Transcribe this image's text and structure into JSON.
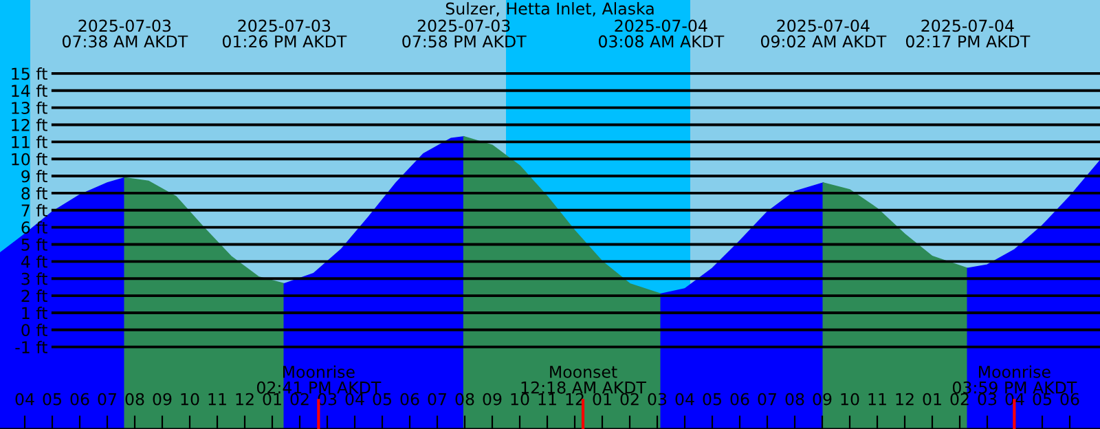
{
  "chart_data": {
    "type": "area",
    "title": "Sulzer, Hetta Inlet, Alaska",
    "series": [
      {
        "color": "#0000ff",
        "x": [
          "2025-07-03T03:06",
          "2025-07-03T04:00",
          "2025-07-03T05:00",
          "2025-07-03T06:00",
          "2025-07-03T07:00",
          "2025-07-03T07:38"
        ],
        "values": [
          4.5,
          5.6,
          6.9,
          7.9,
          8.6,
          8.9
        ]
      },
      {
        "color": "#2e8b57",
        "x": [
          "2025-07-03T07:38",
          "2025-07-03T08:30",
          "2025-07-03T09:30",
          "2025-07-03T10:30",
          "2025-07-03T11:30",
          "2025-07-03T12:30",
          "2025-07-03T13:26"
        ],
        "values": [
          8.9,
          8.7,
          7.8,
          6.0,
          4.3,
          3.1,
          2.7
        ]
      },
      {
        "color": "#0000ff",
        "x": [
          "2025-07-03T13:26",
          "2025-07-03T14:30",
          "2025-07-03T15:30",
          "2025-07-03T16:30",
          "2025-07-03T17:30",
          "2025-07-03T18:30",
          "2025-07-03T19:30",
          "2025-07-03T19:58"
        ],
        "values": [
          2.7,
          3.3,
          4.7,
          6.6,
          8.6,
          10.3,
          11.2,
          11.3
        ]
      },
      {
        "color": "#2e8b57",
        "x": [
          "2025-07-03T19:58",
          "2025-07-03T21:00",
          "2025-07-03T22:00",
          "2025-07-03T23:00",
          "2025-07-04T00:00",
          "2025-07-04T01:00",
          "2025-07-04T02:00",
          "2025-07-04T03:08"
        ],
        "values": [
          11.3,
          10.8,
          9.6,
          7.8,
          5.8,
          4.0,
          2.7,
          2.1
        ]
      },
      {
        "color": "#0000ff",
        "x": [
          "2025-07-04T03:08",
          "2025-07-04T04:00",
          "2025-07-04T05:00",
          "2025-07-04T06:00",
          "2025-07-04T07:00",
          "2025-07-04T08:00",
          "2025-07-04T09:02"
        ],
        "values": [
          2.1,
          2.4,
          3.6,
          5.2,
          6.9,
          8.1,
          8.6
        ]
      },
      {
        "color": "#2e8b57",
        "x": [
          "2025-07-04T09:02",
          "2025-07-04T10:00",
          "2025-07-04T11:00",
          "2025-07-04T12:00",
          "2025-07-04T13:00",
          "2025-07-04T14:17"
        ],
        "values": [
          8.6,
          8.2,
          7.1,
          5.6,
          4.3,
          3.6
        ]
      },
      {
        "color": "#0000ff",
        "x": [
          "2025-07-04T14:17",
          "2025-07-04T15:00",
          "2025-07-04T16:00",
          "2025-07-04T17:00",
          "2025-07-04T18:00",
          "2025-07-04T19:06"
        ],
        "values": [
          3.6,
          3.8,
          4.7,
          6.1,
          7.8,
          9.9
        ]
      }
    ],
    "xlim": [
      "2025-07-03T03:06",
      "2025-07-04T19:06"
    ],
    "xticks": [
      {
        "value": "2025-07-03T04:00",
        "label": "04"
      },
      {
        "value": "2025-07-03T05:00",
        "label": "05"
      },
      {
        "value": "2025-07-03T06:00",
        "label": "06"
      },
      {
        "value": "2025-07-03T07:00",
        "label": "07"
      },
      {
        "value": "2025-07-03T08:00",
        "label": "08"
      },
      {
        "value": "2025-07-03T09:00",
        "label": "09"
      },
      {
        "value": "2025-07-03T10:00",
        "label": "10"
      },
      {
        "value": "2025-07-03T11:00",
        "label": "11"
      },
      {
        "value": "2025-07-03T12:00",
        "label": "12"
      },
      {
        "value": "2025-07-03T13:00",
        "label": "01"
      },
      {
        "value": "2025-07-03T14:00",
        "label": "02"
      },
      {
        "value": "2025-07-03T15:00",
        "label": "03"
      },
      {
        "value": "2025-07-03T16:00",
        "label": "04"
      },
      {
        "value": "2025-07-03T17:00",
        "label": "05"
      },
      {
        "value": "2025-07-03T18:00",
        "label": "06"
      },
      {
        "value": "2025-07-03T19:00",
        "label": "07"
      },
      {
        "value": "2025-07-03T20:00",
        "label": "08"
      },
      {
        "value": "2025-07-03T21:00",
        "label": "09"
      },
      {
        "value": "2025-07-03T22:00",
        "label": "10"
      },
      {
        "value": "2025-07-03T23:00",
        "label": "11"
      },
      {
        "value": "2025-07-04T00:00",
        "label": "12"
      },
      {
        "value": "2025-07-04T01:00",
        "label": "01"
      },
      {
        "value": "2025-07-04T02:00",
        "label": "02"
      },
      {
        "value": "2025-07-04T03:00",
        "label": "03"
      },
      {
        "value": "2025-07-04T04:00",
        "label": "04"
      },
      {
        "value": "2025-07-04T05:00",
        "label": "05"
      },
      {
        "value": "2025-07-04T06:00",
        "label": "06"
      },
      {
        "value": "2025-07-04T07:00",
        "label": "07"
      },
      {
        "value": "2025-07-04T08:00",
        "label": "08"
      },
      {
        "value": "2025-07-04T09:00",
        "label": "09"
      },
      {
        "value": "2025-07-04T10:00",
        "label": "10"
      },
      {
        "value": "2025-07-04T11:00",
        "label": "11"
      },
      {
        "value": "2025-07-04T12:00",
        "label": "12"
      },
      {
        "value": "2025-07-04T13:00",
        "label": "01"
      },
      {
        "value": "2025-07-04T14:00",
        "label": "02"
      },
      {
        "value": "2025-07-04T15:00",
        "label": "03"
      },
      {
        "value": "2025-07-04T16:00",
        "label": "04"
      },
      {
        "value": "2025-07-04T17:00",
        "label": "05"
      },
      {
        "value": "2025-07-04T18:00",
        "label": "06"
      }
    ],
    "ylim": [
      -5.8,
      19.3
    ],
    "yticks": [
      {
        "value": -1,
        "label": "-1 ft"
      },
      {
        "value": 0,
        "label": "0 ft"
      },
      {
        "value": 1,
        "label": "1 ft"
      },
      {
        "value": 2,
        "label": "2 ft"
      },
      {
        "value": 3,
        "label": "3 ft"
      },
      {
        "value": 4,
        "label": "4 ft"
      },
      {
        "value": 5,
        "label": "5 ft"
      },
      {
        "value": 6,
        "label": "6 ft"
      },
      {
        "value": 7,
        "label": "7 ft"
      },
      {
        "value": 8,
        "label": "8 ft"
      },
      {
        "value": 9,
        "label": "9 ft"
      },
      {
        "value": 10,
        "label": "10 ft"
      },
      {
        "value": 11,
        "label": "11 ft"
      },
      {
        "value": 12,
        "label": "12 ft"
      },
      {
        "value": 13,
        "label": "13 ft"
      },
      {
        "value": 14,
        "label": "14 ft"
      },
      {
        "value": 15,
        "label": "15 ft"
      }
    ],
    "grid": "y",
    "bands": [
      {
        "axis": "x",
        "from": "2025-07-03T03:06",
        "to": "2025-07-03T04:12",
        "color": "#00bfff"
      },
      {
        "axis": "x",
        "from": "2025-07-03T21:30",
        "to": "2025-07-04T04:12",
        "color": "#00bfff"
      }
    ],
    "ref_lines": [
      {
        "axis": "x",
        "value": "2025-07-03T14:41",
        "label": "Moonrise\n02:41 PM AKDT",
        "color": "#ff0000"
      },
      {
        "axis": "x",
        "value": "2025-07-04T00:18",
        "label": "Moonset\n12:18 AM AKDT",
        "color": "#ff0000"
      },
      {
        "axis": "x",
        "value": "2025-07-04T15:59",
        "label": "Moonrise\n03:59 PM AKDT",
        "color": "#ff0000"
      }
    ],
    "annotations": [
      "2025-07-03\n07:38 AM AKDT",
      "2025-07-03\n01:26 PM AKDT",
      "2025-07-03\n07:58 PM AKDT",
      "2025-07-04\n03:08 AM AKDT",
      "2025-07-04\n09:02 AM AKDT",
      "2025-07-04\n02:17 PM AKDT"
    ]
  }
}
